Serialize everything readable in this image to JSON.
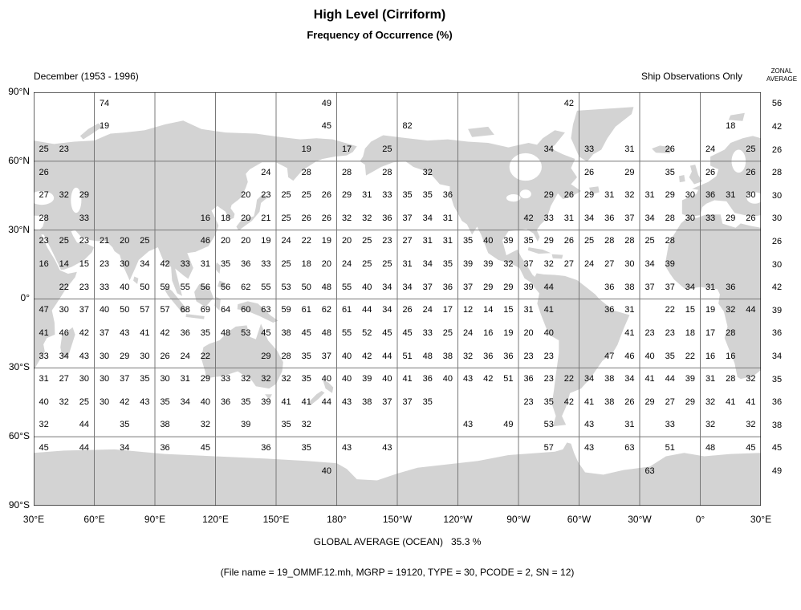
{
  "title": "High Level (Cirriform)",
  "subtitle": "Frequency of Occurrence (%)",
  "period_label": "December (1953 - 1996)",
  "source_label": "Ship Observations Only",
  "zonal_header_line1": "ZONAL",
  "zonal_header_line2": "AVERAGE",
  "global_average": "GLOBAL AVERAGE (OCEAN)   35.3 %",
  "file_info": "(File name = 19_OMMF.12.mh, MGRP = 19120, TYPE = 30, PCODE = 2, SN = 12)",
  "y_axis": [
    "90°N",
    "60°N",
    "30°N",
    "0°",
    "30°S",
    "60°S",
    "90°S"
  ],
  "x_axis": [
    "30°E",
    "60°E",
    "90°E",
    "120°E",
    "150°E",
    "180°",
    "150°W",
    "120°W",
    "90°W",
    "60°W",
    "30°W",
    "0°",
    "30°E"
  ],
  "colors": {
    "land": "#d3d3d3",
    "grid": "#787878",
    "border": "#000000",
    "text": "#000000"
  },
  "chart_data": {
    "type": "heatmap",
    "title": "High Level (Cirriform) Frequency of Occurrence (%)",
    "subtitle": "December (1953 - 1996), Ship Observations Only",
    "units": "%",
    "lon_cell_start_deg_east": 30,
    "lon_cell_width_deg": 10,
    "lat_band_centers": [
      85,
      75,
      65,
      55,
      45,
      35,
      25,
      15,
      5,
      -5,
      -15,
      -25,
      -35,
      -45,
      -55,
      -65,
      -75
    ],
    "zonal_averages": [
      56,
      42,
      26,
      28,
      30,
      30,
      26,
      30,
      42,
      39,
      36,
      34,
      35,
      36,
      38,
      45,
      49
    ],
    "global_average_ocean_pct": 35.3,
    "rows": [
      [
        null,
        null,
        null,
        74,
        null,
        null,
        null,
        null,
        null,
        null,
        null,
        null,
        null,
        null,
        49,
        null,
        null,
        null,
        null,
        null,
        null,
        null,
        null,
        null,
        null,
        null,
        42,
        null,
        null,
        null,
        null,
        null,
        null,
        null,
        null,
        null
      ],
      [
        null,
        null,
        null,
        19,
        null,
        null,
        null,
        null,
        null,
        null,
        null,
        null,
        null,
        null,
        45,
        null,
        null,
        null,
        82,
        null,
        null,
        null,
        null,
        null,
        null,
        null,
        null,
        null,
        null,
        null,
        null,
        null,
        null,
        null,
        18,
        null
      ],
      [
        25,
        23,
        null,
        null,
        null,
        null,
        null,
        null,
        null,
        null,
        null,
        null,
        null,
        19,
        null,
        17,
        null,
        25,
        null,
        null,
        null,
        null,
        null,
        null,
        null,
        34,
        null,
        33,
        null,
        31,
        null,
        26,
        null,
        24,
        null,
        25
      ],
      [
        26,
        null,
        null,
        null,
        null,
        null,
        null,
        null,
        null,
        null,
        null,
        24,
        null,
        28,
        null,
        28,
        null,
        28,
        null,
        32,
        null,
        null,
        null,
        null,
        null,
        null,
        null,
        26,
        null,
        29,
        null,
        35,
        null,
        26,
        null,
        26
      ],
      [
        27,
        32,
        29,
        null,
        null,
        null,
        null,
        null,
        null,
        null,
        20,
        23,
        25,
        25,
        26,
        29,
        31,
        33,
        35,
        35,
        36,
        null,
        null,
        null,
        null,
        29,
        26,
        29,
        31,
        32,
        31,
        29,
        30,
        36,
        31,
        30
      ],
      [
        28,
        null,
        33,
        null,
        null,
        null,
        null,
        null,
        16,
        18,
        20,
        21,
        25,
        26,
        26,
        32,
        32,
        36,
        37,
        34,
        31,
        null,
        null,
        null,
        42,
        33,
        31,
        34,
        36,
        37,
        34,
        28,
        30,
        33,
        29,
        26
      ],
      [
        23,
        25,
        23,
        21,
        20,
        25,
        null,
        null,
        46,
        20,
        20,
        19,
        24,
        22,
        19,
        20,
        25,
        23,
        27,
        31,
        31,
        35,
        40,
        39,
        35,
        29,
        26,
        25,
        28,
        28,
        25,
        28,
        null,
        null,
        null,
        null
      ],
      [
        16,
        14,
        15,
        23,
        30,
        34,
        42,
        33,
        31,
        35,
        36,
        33,
        25,
        18,
        20,
        24,
        25,
        25,
        31,
        34,
        35,
        39,
        39,
        32,
        37,
        32,
        27,
        24,
        27,
        30,
        34,
        39,
        null,
        null,
        null,
        null
      ],
      [
        null,
        22,
        23,
        33,
        40,
        50,
        59,
        55,
        56,
        56,
        62,
        55,
        53,
        50,
        48,
        55,
        40,
        34,
        34,
        37,
        36,
        37,
        29,
        29,
        39,
        44,
        null,
        null,
        36,
        38,
        37,
        37,
        34,
        31,
        36,
        null
      ],
      [
        47,
        30,
        37,
        40,
        50,
        57,
        57,
        68,
        69,
        64,
        60,
        63,
        59,
        61,
        62,
        61,
        44,
        34,
        26,
        24,
        17,
        12,
        14,
        15,
        31,
        41,
        null,
        null,
        36,
        31,
        null,
        22,
        15,
        19,
        32,
        44
      ],
      [
        41,
        46,
        42,
        37,
        43,
        41,
        42,
        36,
        35,
        48,
        53,
        45,
        38,
        45,
        48,
        55,
        52,
        45,
        45,
        33,
        25,
        24,
        16,
        19,
        20,
        40,
        null,
        null,
        null,
        41,
        23,
        23,
        18,
        17,
        28,
        null
      ],
      [
        33,
        34,
        43,
        30,
        29,
        30,
        26,
        24,
        22,
        null,
        null,
        29,
        28,
        35,
        37,
        40,
        42,
        44,
        51,
        48,
        38,
        32,
        36,
        36,
        23,
        23,
        null,
        null,
        47,
        46,
        40,
        35,
        22,
        16,
        16,
        null
      ],
      [
        31,
        27,
        30,
        30,
        37,
        35,
        30,
        31,
        29,
        33,
        32,
        32,
        32,
        35,
        40,
        40,
        39,
        40,
        41,
        36,
        40,
        43,
        42,
        51,
        36,
        23,
        22,
        34,
        38,
        34,
        41,
        44,
        39,
        31,
        28,
        32
      ],
      [
        40,
        32,
        25,
        30,
        42,
        43,
        35,
        34,
        40,
        36,
        35,
        39,
        41,
        41,
        44,
        43,
        38,
        37,
        37,
        35,
        null,
        null,
        null,
        null,
        23,
        35,
        42,
        41,
        38,
        26,
        29,
        27,
        29,
        32,
        41,
        41
      ],
      [
        32,
        null,
        44,
        null,
        35,
        null,
        38,
        null,
        32,
        null,
        39,
        null,
        35,
        32,
        null,
        null,
        null,
        null,
        null,
        null,
        null,
        43,
        null,
        49,
        null,
        53,
        null,
        43,
        null,
        31,
        null,
        33,
        null,
        32,
        null,
        32
      ],
      [
        45,
        null,
        44,
        null,
        34,
        null,
        36,
        null,
        45,
        null,
        null,
        36,
        null,
        35,
        null,
        43,
        null,
        43,
        null,
        null,
        null,
        null,
        null,
        null,
        null,
        57,
        null,
        43,
        null,
        63,
        null,
        51,
        null,
        48,
        null,
        45
      ],
      [
        null,
        null,
        null,
        null,
        null,
        null,
        null,
        null,
        null,
        null,
        null,
        null,
        null,
        null,
        40,
        null,
        null,
        null,
        null,
        null,
        null,
        null,
        null,
        null,
        null,
        null,
        null,
        null,
        null,
        null,
        63,
        null,
        null,
        null,
        null,
        null
      ]
    ]
  }
}
